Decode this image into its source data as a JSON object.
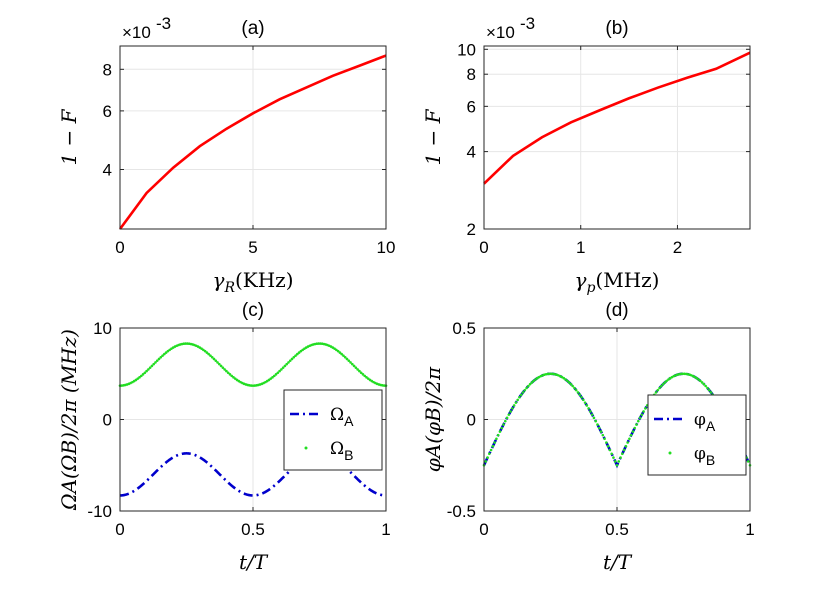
{
  "chart_data": [
    {
      "id": "a",
      "type": "line",
      "title": "(a)",
      "scale_label": "×10",
      "scale_exponent": "-3",
      "xlabel": "γR(KHz)",
      "ylabel": "1 − F",
      "xlim": [
        0,
        10
      ],
      "ylim": [
        2.65,
        9.4
      ],
      "y_scale": "log",
      "x_ticks": [
        0,
        5,
        10
      ],
      "x_tick_labels": [
        "0",
        "5",
        "10"
      ],
      "y_ticks": [
        4,
        6,
        8
      ],
      "y_tick_labels": [
        "4",
        "6",
        "8"
      ],
      "grid": true,
      "series": [
        {
          "name": "1-F",
          "color": "#ff0000",
          "x": [
            0,
            1,
            2,
            3,
            4,
            5,
            6,
            7,
            8,
            9,
            10
          ],
          "y": [
            2.65,
            3.4,
            4.05,
            4.7,
            5.3,
            5.9,
            6.5,
            7.05,
            7.65,
            8.2,
            8.8
          ]
        }
      ]
    },
    {
      "id": "b",
      "type": "line",
      "title": "(b)",
      "scale_label": "×10",
      "scale_exponent": "-3",
      "xlabel": "γp(MHz)",
      "ylabel": "1 − F",
      "xlim": [
        0,
        2.75
      ],
      "ylim": [
        2,
        10.3
      ],
      "y_scale": "log",
      "x_ticks": [
        0,
        1,
        2
      ],
      "x_tick_labels": [
        "0",
        "1",
        "2"
      ],
      "y_ticks": [
        2,
        4,
        6,
        8,
        10
      ],
      "y_tick_labels": [
        "2",
        "4",
        "6",
        "8",
        "10"
      ],
      "grid": true,
      "series": [
        {
          "name": "1-F",
          "color": "#ff0000",
          "x": [
            0,
            0.3,
            0.6,
            0.9,
            1.2,
            1.5,
            1.8,
            2.1,
            2.4,
            2.75
          ],
          "y": [
            3.0,
            3.85,
            4.55,
            5.2,
            5.8,
            6.45,
            7.1,
            7.75,
            8.4,
            9.7
          ]
        }
      ]
    },
    {
      "id": "c",
      "type": "line",
      "title": "(c)",
      "xlabel": "t/T",
      "ylabel": "ΩA(ΩB)/2π (MHz)",
      "xlim": [
        0,
        1
      ],
      "ylim": [
        -10,
        10
      ],
      "x_ticks": [
        0,
        0.5,
        1
      ],
      "x_tick_labels": [
        "0",
        "0.5",
        "1"
      ],
      "y_ticks": [
        -10,
        0,
        10
      ],
      "y_tick_labels": [
        "-10",
        "0",
        "10"
      ],
      "grid": true,
      "legend": {
        "position": "center-right",
        "items": [
          {
            "base": "Ω",
            "sub": "A",
            "style": "dashdot",
            "color": "#0000cc"
          },
          {
            "base": "Ω",
            "sub": "B",
            "style": "dots",
            "color": "#22dd22"
          }
        ]
      },
      "series": [
        {
          "name": "ΩA",
          "color": "#0000cc",
          "style": "dashdot",
          "formula": "-(6 + 2.3*cos(4*pi*t))"
        },
        {
          "name": "ΩB",
          "color": "#22dd22",
          "style": "dots",
          "formula": "6 - 2.3*cos(4*pi*t)"
        }
      ]
    },
    {
      "id": "d",
      "type": "line",
      "title": "(d)",
      "xlabel": "t/T",
      "ylabel": "φA(φB)/2π",
      "xlim": [
        0,
        1
      ],
      "ylim": [
        -0.5,
        0.5
      ],
      "x_ticks": [
        0,
        0.5,
        1
      ],
      "x_tick_labels": [
        "0",
        "0.5",
        "1"
      ],
      "y_ticks": [
        -0.5,
        0,
        0.5
      ],
      "y_tick_labels": [
        "-0.5",
        "0",
        "0.5"
      ],
      "grid": true,
      "legend": {
        "position": "center-right",
        "items": [
          {
            "base": "φ",
            "sub": "A",
            "style": "dashdot",
            "color": "#0000cc"
          },
          {
            "base": "φ",
            "sub": "B",
            "style": "dots",
            "color": "#22dd22"
          }
        ]
      },
      "series": [
        {
          "name": "φA",
          "color": "#0000cc",
          "style": "dashdot",
          "formula": "0.5*|sin(2*pi*t)| - 0.25"
        },
        {
          "name": "φB",
          "color": "#22dd22",
          "style": "dots",
          "formula": "0.5*|sin(2*pi*t)| - 0.25"
        }
      ]
    }
  ]
}
